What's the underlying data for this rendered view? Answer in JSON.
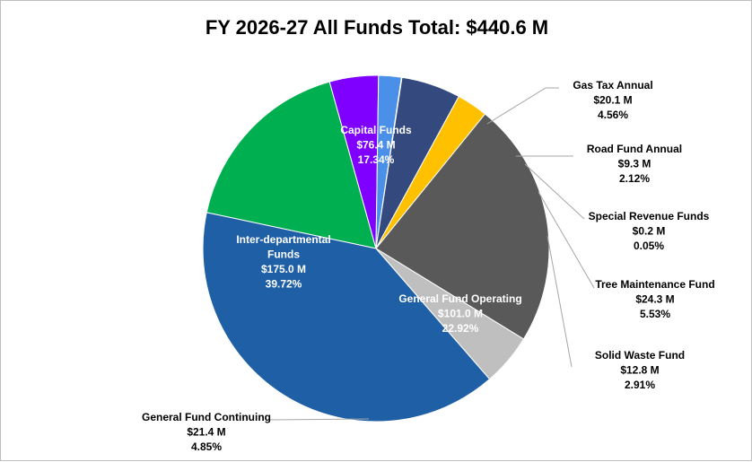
{
  "chart_data": {
    "type": "pie",
    "title": "FY 2026-27 All Funds Total: $440.6 M",
    "slices": [
      {
        "name": "Capital Funds",
        "amount": "$76.4 M",
        "pct_label": "17.34%",
        "value": 17.34,
        "color": "#00b050",
        "label_color": "#ffffff"
      },
      {
        "name": "Gas Tax Annual",
        "amount": "$20.1 M",
        "pct_label": "4.56%",
        "value": 4.56,
        "color": "#7f00ff",
        "label_color": "#000000"
      },
      {
        "name": "Road Fund Annual",
        "amount": "$9.3 M",
        "pct_label": "2.12%",
        "value": 2.12,
        "color": "#4a8fe8",
        "label_color": "#000000"
      },
      {
        "name": "Special Revenue Funds",
        "amount": "$0.2 M",
        "pct_label": "0.05%",
        "value": 0.05,
        "color": "#6a3d9a",
        "label_color": "#000000"
      },
      {
        "name": "Tree Maintenance Fund",
        "amount": "$24.3 M",
        "pct_label": "5.53%",
        "value": 5.53,
        "color": "#34497d",
        "label_color": "#000000"
      },
      {
        "name": "Solid Waste Fund",
        "amount": "$12.8 M",
        "pct_label": "2.91%",
        "value": 2.91,
        "color": "#ffc000",
        "label_color": "#000000"
      },
      {
        "name": "General Fund Operating",
        "amount": "$101.0 M",
        "pct_label": "22.92%",
        "value": 22.92,
        "color": "#595959",
        "label_color": "#ffffff"
      },
      {
        "name": "General Fund Continuing",
        "amount": "$21.4 M",
        "pct_label": "4.85%",
        "value": 4.85,
        "color": "#bfbfbf",
        "label_color": "#000000"
      },
      {
        "name": "Inter-departmental Funds",
        "amount": "$175.0 M",
        "pct_label": "39.72%",
        "value": 39.72,
        "color": "#1f5fa6",
        "label_color": "#ffffff"
      }
    ]
  }
}
